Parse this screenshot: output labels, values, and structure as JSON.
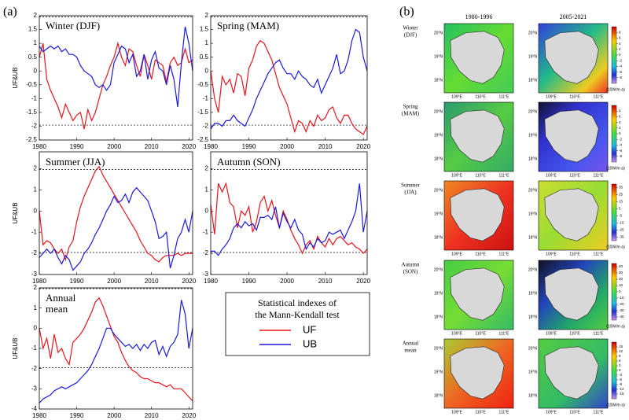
{
  "panel_labels": [
    "(a)",
    "(b)"
  ],
  "legend_title": [
    "Statistical indexes of",
    "the Mann-Kendall test"
  ],
  "chart_data": [
    {
      "type": "line",
      "title": "Winter (DJF)",
      "ylabel": "UF&UB",
      "x": [
        1980,
        1981,
        1982,
        1983,
        1984,
        1985,
        1986,
        1987,
        1988,
        1989,
        1990,
        1991,
        1992,
        1993,
        1994,
        1995,
        1996,
        1997,
        1998,
        1999,
        2000,
        2001,
        2002,
        2003,
        2004,
        2005,
        2006,
        2007,
        2008,
        2009,
        2010,
        2011,
        2012,
        2013,
        2014,
        2015,
        2016,
        2017,
        2018,
        2019,
        2020,
        2021
      ],
      "series": [
        {
          "name": "UF",
          "color": "#e8141c",
          "values": [
            0.5,
            1.0,
            -0.3,
            -0.7,
            -1.0,
            -1.3,
            -1.7,
            -1.2,
            -1.5,
            -1.8,
            -1.6,
            -1.5,
            -2.1,
            -1.4,
            -1.8,
            -1.5,
            -1.0,
            -0.5,
            -0.2,
            0.2,
            0.5,
            1.0,
            0.5,
            0.2,
            0.8,
            0.7,
            0.2,
            -0.2,
            0.6,
            0.2,
            -0.3,
            0.4,
            0.3,
            0.2,
            -0.4,
            0.3,
            0.5,
            0.2,
            0.3,
            0.8,
            0.3,
            0.4
          ]
        },
        {
          "name": "UB",
          "color": "#1a1adc",
          "values": [
            0.9,
            0.7,
            0.8,
            0.9,
            0.8,
            0.9,
            0.7,
            0.8,
            0.6,
            0.6,
            0.5,
            0.2,
            0.0,
            -0.1,
            -0.2,
            -0.5,
            -0.6,
            -0.5,
            -0.7,
            -0.5,
            0.3,
            0.6,
            0.9,
            0.8,
            0.3,
            0.6,
            -0.2,
            0.0,
            0.6,
            -0.3,
            0.4,
            0.7,
            0.1,
            0.0,
            -0.5,
            0.2,
            -0.3,
            -1.3,
            0.3,
            1.6,
            1.0,
            0.0
          ]
        }
      ],
      "hlines": [
        1.96,
        -1.96
      ],
      "xlim": [
        1980,
        2021
      ],
      "xticks": [
        1980,
        1990,
        2000,
        2010,
        2020
      ],
      "ylim": [
        -2.5,
        2
      ],
      "yticks": [
        -2.5,
        -2,
        -1.5,
        -1,
        -0.5,
        0,
        0.5,
        1,
        1.5,
        2
      ]
    },
    {
      "type": "line",
      "title": "Spring (MAM)",
      "x": [
        1980,
        1981,
        1982,
        1983,
        1984,
        1985,
        1986,
        1987,
        1988,
        1989,
        1990,
        1991,
        1992,
        1993,
        1994,
        1995,
        1996,
        1997,
        1998,
        1999,
        2000,
        2001,
        2002,
        2003,
        2004,
        2005,
        2006,
        2007,
        2008,
        2009,
        2010,
        2011,
        2012,
        2013,
        2014,
        2015,
        2016,
        2017,
        2018,
        2019,
        2020,
        2021
      ],
      "series": [
        {
          "name": "UF",
          "color": "#e8141c",
          "values": [
            0.0,
            -1.0,
            -1.5,
            -0.2,
            -0.5,
            -0.3,
            -0.8,
            -0.1,
            -0.2,
            -0.9,
            0.1,
            0.4,
            0.9,
            1.1,
            1.0,
            0.7,
            0.4,
            -0.1,
            -0.6,
            -0.9,
            -1.2,
            -1.7,
            -2.2,
            -1.8,
            -1.9,
            -2.2,
            -1.8,
            -2.0,
            -1.6,
            -1.8,
            -1.7,
            -1.4,
            -1.3,
            -1.7,
            -1.9,
            -1.6,
            -1.6,
            -1.9,
            -2.1,
            -2.2,
            -2.3,
            -2.0
          ]
        },
        {
          "name": "UB",
          "color": "#1a1adc",
          "values": [
            -2.1,
            -1.9,
            -1.9,
            -2.0,
            -1.8,
            -1.8,
            -1.6,
            -1.8,
            -1.9,
            -2.0,
            -1.7,
            -1.4,
            -1.0,
            -0.7,
            -0.4,
            -0.1,
            0.1,
            0.3,
            0.4,
            0.1,
            -0.1,
            -0.1,
            -0.3,
            0.0,
            -0.2,
            -0.3,
            -0.5,
            -0.6,
            -0.3,
            -0.8,
            -0.5,
            -0.2,
            0.1,
            0.6,
            -0.1,
            0.0,
            0.4,
            1.1,
            1.5,
            1.4,
            0.5,
            0.0
          ]
        }
      ],
      "hlines": [
        1.96,
        -1.96
      ],
      "xlim": [
        1980,
        2021
      ],
      "xticks": [
        1980,
        1990,
        2000,
        2010,
        2020
      ],
      "ylim": [
        -2.5,
        2
      ],
      "yticks": [
        -2.5,
        -2,
        -1.5,
        -1,
        -0.5,
        0,
        0.5,
        1,
        1.5,
        2
      ]
    },
    {
      "type": "line",
      "title": "Summer (JJA)",
      "ylabel": "UF&UB",
      "x": [
        1980,
        1981,
        1982,
        1983,
        1984,
        1985,
        1986,
        1987,
        1988,
        1989,
        1990,
        1991,
        1992,
        1993,
        1994,
        1995,
        1996,
        1997,
        1998,
        1999,
        2000,
        2001,
        2002,
        2003,
        2004,
        2005,
        2006,
        2007,
        2008,
        2009,
        2010,
        2011,
        2012,
        2013,
        2014,
        2015,
        2016,
        2017,
        2018,
        2019,
        2020,
        2021
      ],
      "series": [
        {
          "name": "UF",
          "color": "#e8141c",
          "values": [
            0.0,
            -1.6,
            -1.4,
            -1.5,
            -1.8,
            -2.0,
            -1.8,
            -2.3,
            -1.7,
            -1.4,
            -0.5,
            0.2,
            0.7,
            1.1,
            1.5,
            1.9,
            2.1,
            1.7,
            1.4,
            1.1,
            0.8,
            0.5,
            0.2,
            -0.1,
            -0.4,
            -0.7,
            -1.0,
            -1.4,
            -1.7,
            -2.0,
            -2.1,
            -2.3,
            -2.4,
            -2.2,
            -2.1,
            -2.1,
            -2.1,
            -2.0,
            -2.1,
            -2.0,
            -2.0,
            -2.0
          ]
        },
        {
          "name": "UB",
          "color": "#1a1adc",
          "values": [
            -2.2,
            -2.0,
            -1.8,
            -2.0,
            -1.8,
            -2.2,
            -2.5,
            -2.1,
            -2.3,
            -2.8,
            -2.6,
            -2.4,
            -2.0,
            -1.8,
            -1.5,
            -1.1,
            -0.8,
            -0.4,
            0.0,
            0.3,
            0.7,
            0.4,
            0.5,
            0.8,
            0.4,
            0.9,
            1.1,
            0.9,
            0.7,
            0.5,
            0.0,
            -0.5,
            -1.3,
            -1.2,
            -1.0,
            -2.7,
            -2.1,
            -1.3,
            -1.0,
            -0.4,
            -1.0,
            0.0
          ]
        }
      ],
      "hlines": [
        1.96,
        -1.96
      ],
      "xlim": [
        1980,
        2021
      ],
      "xticks": [
        1980,
        1990,
        2000,
        2010,
        2020
      ],
      "ylim": [
        -3,
        2.8
      ],
      "yticks": [
        -3,
        -2,
        -1,
        0,
        1,
        2
      ]
    },
    {
      "type": "line",
      "title": "Autumn (SON)",
      "x": [
        1980,
        1981,
        1982,
        1983,
        1984,
        1985,
        1986,
        1987,
        1988,
        1989,
        1990,
        1991,
        1992,
        1993,
        1994,
        1995,
        1996,
        1997,
        1998,
        1999,
        2000,
        2001,
        2002,
        2003,
        2004,
        2005,
        2006,
        2007,
        2008,
        2009,
        2010,
        2011,
        2012,
        2013,
        2014,
        2015,
        2016,
        2017,
        2018,
        2019,
        2020,
        2021
      ],
      "series": [
        {
          "name": "UF",
          "color": "#e8141c",
          "values": [
            0.3,
            -1.1,
            1.3,
            0.9,
            1.3,
            0.4,
            0.2,
            -0.8,
            0.0,
            -0.2,
            0.2,
            -1.0,
            -0.5,
            0.4,
            0.7,
            0.0,
            0.5,
            -0.2,
            -0.8,
            0.0,
            -0.4,
            -0.9,
            -1.3,
            -1.6,
            -2.0,
            -1.6,
            -1.4,
            -1.8,
            -1.2,
            -1.5,
            -1.7,
            -1.3,
            -1.6,
            -1.3,
            -1.2,
            -1.4,
            -1.6,
            -1.5,
            -1.7,
            -1.8,
            -2.0,
            -1.8
          ]
        },
        {
          "name": "UB",
          "color": "#1a1adc",
          "values": [
            -1.9,
            -1.9,
            -2.1,
            -1.8,
            -1.6,
            -1.3,
            -0.8,
            -0.6,
            -0.8,
            -0.5,
            -0.7,
            -0.6,
            -0.9,
            -0.3,
            -0.3,
            -0.2,
            -0.4,
            0.2,
            -0.8,
            -0.1,
            -0.5,
            -0.8,
            -0.4,
            -0.9,
            -1.1,
            -1.8,
            -1.5,
            -1.7,
            -1.3,
            -1.5,
            -1.4,
            -1.0,
            -1.1,
            -1.0,
            -0.9,
            -1.3,
            -0.9,
            -0.5,
            0.0,
            1.3,
            -1.0,
            0.0
          ]
        }
      ],
      "hlines": [
        1.96,
        -1.96
      ],
      "xlim": [
        1980,
        2021
      ],
      "xticks": [
        1980,
        1990,
        2000,
        2010,
        2020
      ],
      "ylim": [
        -3,
        2.8
      ],
      "yticks": [
        -3,
        -2,
        -1,
        0,
        1,
        2
      ]
    },
    {
      "type": "line",
      "title": "Annual mean",
      "ylabel": "UF&UB",
      "x": [
        1980,
        1981,
        1982,
        1983,
        1984,
        1985,
        1986,
        1987,
        1988,
        1989,
        1990,
        1991,
        1992,
        1993,
        1994,
        1995,
        1996,
        1997,
        1998,
        1999,
        2000,
        2001,
        2002,
        2003,
        2004,
        2005,
        2006,
        2007,
        2008,
        2009,
        2010,
        2011,
        2012,
        2013,
        2014,
        2015,
        2016,
        2017,
        2018,
        2019,
        2020,
        2021
      ],
      "series": [
        {
          "name": "UF",
          "color": "#e8141c",
          "values": [
            0.0,
            -1.0,
            -0.5,
            -1.5,
            -0.3,
            -1.2,
            -1.0,
            -1.5,
            -1.8,
            -0.7,
            -0.5,
            -0.3,
            0.0,
            0.4,
            0.8,
            1.3,
            1.5,
            1.1,
            0.6,
            0.1,
            -0.4,
            -0.7,
            -1.2,
            -1.6,
            -1.9,
            -2.1,
            -2.2,
            -2.4,
            -2.5,
            -2.5,
            -2.6,
            -2.7,
            -2.7,
            -2.8,
            -2.9,
            -2.8,
            -3.0,
            -3.0,
            -3.0,
            -3.2,
            -3.4,
            -3.6
          ]
        },
        {
          "name": "UB",
          "color": "#1a1adc",
          "values": [
            -3.7,
            -3.5,
            -3.4,
            -3.3,
            -3.1,
            -3.0,
            -2.9,
            -3.0,
            -2.9,
            -2.8,
            -2.7,
            -2.5,
            -2.3,
            -2.1,
            -1.8,
            -1.4,
            -1.0,
            -0.5,
            0.0,
            0.0,
            -0.3,
            -0.5,
            -0.7,
            -0.9,
            -0.8,
            -1.0,
            -0.8,
            -1.1,
            -0.8,
            -1.0,
            -0.7,
            -0.6,
            -1.3,
            -0.9,
            -1.4,
            -0.9,
            -0.7,
            -0.3,
            1.4,
            0.7,
            -1.0,
            0.0
          ]
        }
      ],
      "hlines": [
        1.96,
        -1.96
      ],
      "xlim": [
        1980,
        2021
      ],
      "xticks": [
        1980,
        1990,
        2000,
        2010,
        2020
      ],
      "ylim": [
        -4,
        2
      ],
      "yticks": [
        -4,
        -3,
        -2,
        -1,
        0,
        1,
        2
      ]
    }
  ],
  "maps": {
    "columns": [
      "1980-1996",
      "2005-2021"
    ],
    "lat_labels": [
      "20°N",
      "19°N",
      "18°N"
    ],
    "lon_labels": [
      "109°E",
      "110°E",
      "111°E"
    ],
    "unit": "(10W/m·a)",
    "rows": [
      {
        "label": [
          "Winter",
          "(DJF)"
        ],
        "cbar_lim": [
          -10,
          10
        ],
        "cbar_ticks": [
          -8,
          -6,
          -4,
          -2,
          0,
          2,
          4,
          6,
          8
        ]
      },
      {
        "label": [
          "Spring",
          "(MAM)"
        ],
        "cbar_lim": [
          -10,
          10
        ],
        "cbar_ticks": [
          -8,
          -6,
          -4,
          -2,
          0,
          2,
          4,
          6,
          8
        ]
      },
      {
        "label": [
          "Summer",
          "(JJA)"
        ],
        "cbar_lim": [
          -40,
          40
        ],
        "cbar_ticks": [
          -35,
          -25,
          -15,
          -5,
          5,
          15,
          25,
          35
        ]
      },
      {
        "label": [
          "Autumn",
          "(SON)"
        ],
        "cbar_lim": [
          -45,
          45
        ],
        "cbar_ticks": [
          -40,
          -30,
          -20,
          -10,
          0,
          10,
          20,
          30,
          40
        ]
      },
      {
        "label": [
          "Annual",
          "mean"
        ],
        "cbar_lim": [
          -18,
          18
        ],
        "cbar_ticks": [
          -15,
          -12,
          -9,
          -6,
          -3,
          0,
          3,
          6,
          9,
          12,
          15
        ]
      }
    ]
  }
}
